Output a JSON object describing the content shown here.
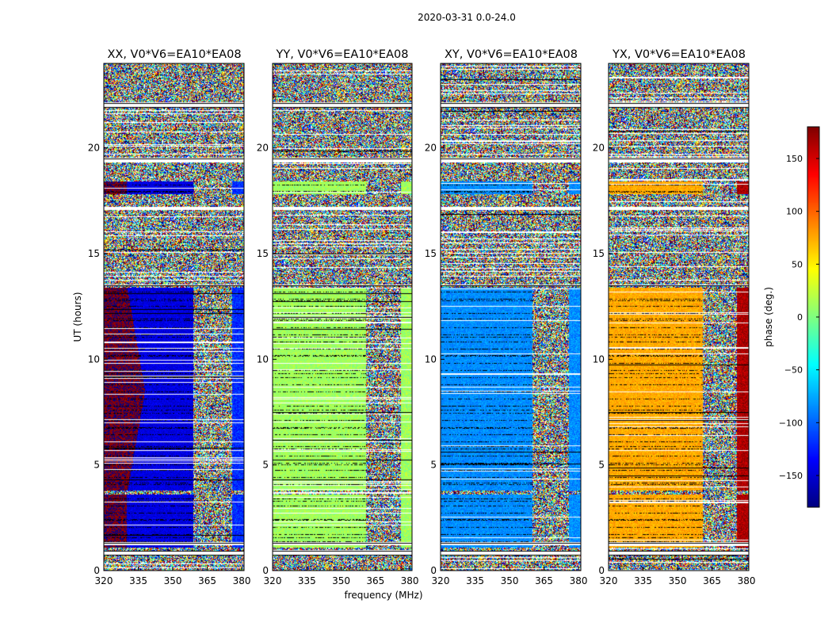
{
  "chart_data": {
    "type": "heatmap",
    "suptitle": "2020-03-31 0.0-24.0",
    "xlabel": "frequency (MHz)",
    "ylabel": "UT (hours)",
    "xlim": [
      320,
      381
    ],
    "ylim": [
      0,
      24
    ],
    "x_ticks": [
      "320",
      "335",
      "350",
      "365",
      "380"
    ],
    "x_tick_values": [
      320,
      335,
      350,
      365,
      380
    ],
    "y_ticks": [
      "0",
      "5",
      "10",
      "15",
      "20"
    ],
    "y_tick_values": [
      0,
      5,
      10,
      15,
      20
    ],
    "colorbar": {
      "label": "phase (deg.)",
      "range": [
        -180,
        180
      ],
      "ticks": [
        "150",
        "100",
        "50",
        "0",
        "−50",
        "−100",
        "−150"
      ],
      "tick_values": [
        150,
        100,
        50,
        0,
        -50,
        -100,
        -150
      ],
      "colormap": "jet"
    },
    "panels": [
      {
        "title": "XX, V0*V6=EA10*EA08",
        "coherent_phase_deg": -145,
        "alt_phase_deg": 178,
        "alt_low_freq_edge_mhz": 330,
        "edge_phase_deg": -120,
        "noisy_above_mhz": 359
      },
      {
        "title": "YY, V0*V6=EA10*EA08",
        "coherent_phase_deg": 12,
        "alt_phase_deg": 12,
        "alt_low_freq_edge_mhz": 320,
        "edge_phase_deg": 12,
        "noisy_above_mhz": 361
      },
      {
        "title": "XY, V0*V6=EA10*EA08",
        "coherent_phase_deg": -85,
        "alt_phase_deg": -85,
        "alt_low_freq_edge_mhz": 320,
        "edge_phase_deg": -85,
        "noisy_above_mhz": 360
      },
      {
        "title": "YX, V0*V6=EA10*EA08",
        "coherent_phase_deg": 75,
        "alt_phase_deg": 75,
        "alt_low_freq_edge_mhz": 320,
        "edge_phase_deg": 165,
        "noisy_above_mhz": 361
      }
    ],
    "coherent_intervals_ut": [
      [
        1.1,
        3.6
      ],
      [
        3.8,
        13.4
      ],
      [
        17.8,
        18.4
      ]
    ],
    "noise_intervals_ut": [
      [
        0,
        1.1
      ],
      [
        13.4,
        17.8
      ],
      [
        18.4,
        24
      ]
    ],
    "flagged_gaps_ut": [
      [
        0.7,
        0.95
      ],
      [
        1.2,
        1.35
      ],
      [
        19.3,
        19.55
      ],
      [
        21.9,
        22.15
      ],
      [
        13.45,
        13.55
      ],
      [
        17.05,
        17.2
      ]
    ]
  }
}
